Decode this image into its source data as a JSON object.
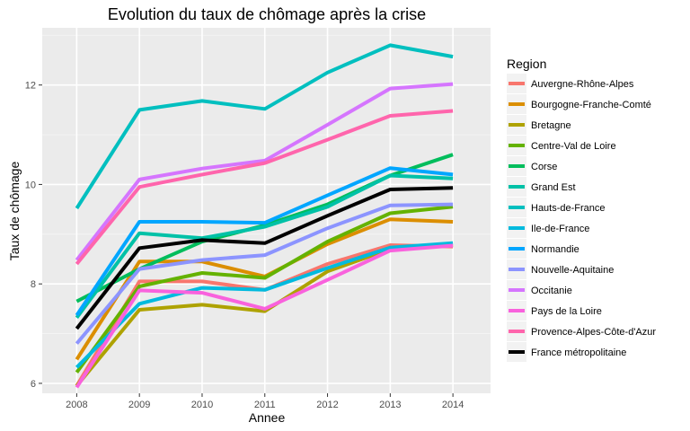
{
  "chart_data": {
    "type": "line",
    "title": "Evolution du taux de chômage après la crise",
    "xlabel": "Annee",
    "ylabel": "Taux de chômage",
    "x": [
      2008,
      2009,
      2010,
      2011,
      2012,
      2013,
      2014
    ],
    "yticks": [
      6,
      8,
      10,
      12
    ],
    "xlim": [
      2007.45,
      2014.6
    ],
    "ylim": [
      5.8,
      13.15
    ],
    "grid": true,
    "legend_title": "Region",
    "legend_position": "right",
    "series": [
      {
        "name": "Auvergne-Rhône-Alpes",
        "color": "#F8766D",
        "values": [
          5.95,
          8.05,
          8.05,
          7.88,
          8.4,
          8.78,
          8.75
        ]
      },
      {
        "name": "Bourgogne-Franche-Comté",
        "color": "#DB8E00",
        "values": [
          6.48,
          8.45,
          8.45,
          8.15,
          8.8,
          9.3,
          9.25
        ]
      },
      {
        "name": "Bretagne",
        "color": "#AEA200",
        "values": [
          5.95,
          7.48,
          7.58,
          7.45,
          8.25,
          8.7,
          8.78
        ]
      },
      {
        "name": "Centre-Val de Loire",
        "color": "#64B200",
        "values": [
          6.22,
          7.95,
          8.22,
          8.12,
          8.85,
          9.42,
          9.55
        ]
      },
      {
        "name": "Corse",
        "color": "#00BD5C",
        "values": [
          7.65,
          8.3,
          8.85,
          9.18,
          9.6,
          10.18,
          10.6
        ]
      },
      {
        "name": "Grand Est",
        "color": "#00C1A7",
        "values": [
          7.32,
          9.02,
          8.92,
          9.15,
          9.55,
          10.18,
          10.12
        ]
      },
      {
        "name": "Hauts-de-France",
        "color": "#00BFBF",
        "values": [
          9.52,
          11.5,
          11.68,
          11.52,
          12.25,
          12.8,
          12.57
        ]
      },
      {
        "name": "Ile-de-France",
        "color": "#00BADE",
        "values": [
          6.32,
          7.6,
          7.92,
          7.88,
          8.32,
          8.73,
          8.82
        ]
      },
      {
        "name": "Normandie",
        "color": "#00A6FF",
        "values": [
          7.37,
          9.25,
          9.25,
          9.23,
          9.78,
          10.33,
          10.2
        ]
      },
      {
        "name": "Nouvelle-Aquitaine",
        "color": "#8C94FF",
        "values": [
          6.8,
          8.3,
          8.48,
          8.58,
          9.12,
          9.58,
          9.6
        ]
      },
      {
        "name": "Occitanie",
        "color": "#D575FE",
        "values": [
          8.48,
          10.1,
          10.32,
          10.48,
          11.2,
          11.93,
          12.02
        ]
      },
      {
        "name": "Pays de la Loire",
        "color": "#F962DD",
        "values": [
          5.92,
          7.87,
          7.82,
          7.5,
          8.08,
          8.67,
          8.77
        ]
      },
      {
        "name": "Provence-Alpes-Côte-d'Azur",
        "color": "#FF65AC",
        "values": [
          8.4,
          9.95,
          10.2,
          10.43,
          10.9,
          11.38,
          11.48
        ]
      },
      {
        "name": "France métropolitaine",
        "color": "#000000",
        "values": [
          7.1,
          8.72,
          8.88,
          8.82,
          9.37,
          9.9,
          9.93
        ]
      }
    ]
  }
}
